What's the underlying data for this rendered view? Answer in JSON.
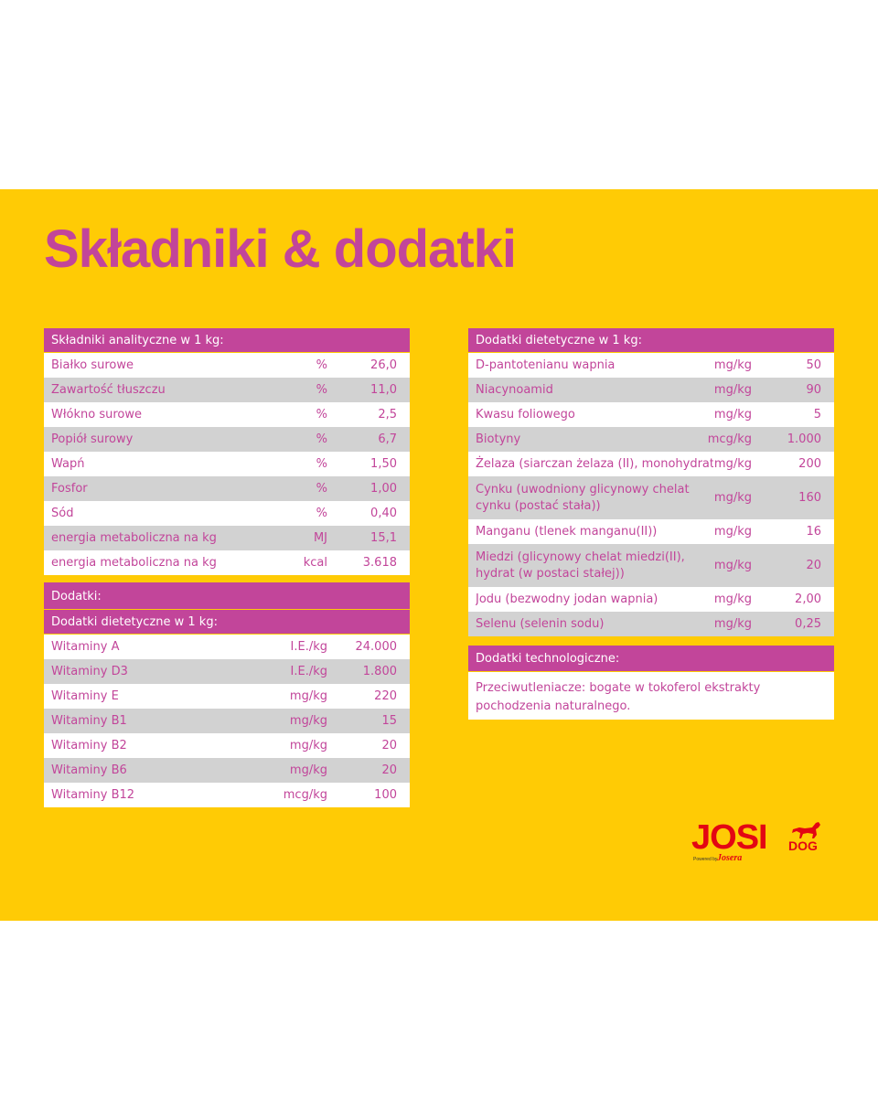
{
  "title": "Składniki & dodatki",
  "colors": {
    "background": "#ffcb05",
    "accent": "#c2459a",
    "row_alt": "#d2d2d2",
    "logo": "#e30613"
  },
  "analytical": {
    "header": "Składniki analityczne w 1 kg:",
    "rows": [
      {
        "name": "Białko surowe",
        "unit": "%",
        "value": "26,0"
      },
      {
        "name": "Zawartość tłuszczu",
        "unit": "%",
        "value": "11,0"
      },
      {
        "name": "Włókno surowe",
        "unit": "%",
        "value": "2,5"
      },
      {
        "name": "Popiół surowy",
        "unit": "%",
        "value": "6,7"
      },
      {
        "name": "Wapń",
        "unit": "%",
        "value": "1,50"
      },
      {
        "name": "Fosfor",
        "unit": "%",
        "value": "1,00"
      },
      {
        "name": "Sód",
        "unit": "%",
        "value": "0,40"
      },
      {
        "name": "energia metaboliczna na kg",
        "unit": "MJ",
        "value": "15,1"
      },
      {
        "name": "energia metaboliczna na kg",
        "unit": "kcal",
        "value": "3.618"
      }
    ]
  },
  "additives": {
    "header": "Dodatki:",
    "subheader": "Dodatki dietetyczne w 1 kg:",
    "rows": [
      {
        "name": "Witaminy A",
        "unit": "I.E./kg",
        "value": "24.000"
      },
      {
        "name": "Witaminy D3",
        "unit": "I.E./kg",
        "value": "1.800"
      },
      {
        "name": "Witaminy E",
        "unit": "mg/kg",
        "value": "220"
      },
      {
        "name": "Witaminy B1",
        "unit": "mg/kg",
        "value": "15"
      },
      {
        "name": "Witaminy B2",
        "unit": "mg/kg",
        "value": "20"
      },
      {
        "name": "Witaminy B6",
        "unit": "mg/kg",
        "value": "20"
      },
      {
        "name": "Witaminy B12",
        "unit": "mcg/kg",
        "value": "100"
      }
    ]
  },
  "dietary": {
    "header": "Dodatki dietetyczne w 1 kg:",
    "rows": [
      {
        "name": "D-pantotenianu wapnia",
        "unit": "mg/kg",
        "value": "50"
      },
      {
        "name": "Niacynoamid",
        "unit": "mg/kg",
        "value": "90"
      },
      {
        "name": "Kwasu foliowego",
        "unit": "mg/kg",
        "value": "5"
      },
      {
        "name": "Biotyny",
        "unit": "mcg/kg",
        "value": "1.000"
      },
      {
        "name": "Żelaza (siarczan żelaza (II), monohydrat)",
        "unit": "mg/kg",
        "value": "200"
      },
      {
        "name": "Cynku (uwodniony glicynowy chelat cynku (postać stała))",
        "unit": "mg/kg",
        "value": "160"
      },
      {
        "name": "Manganu (tlenek manganu(II))",
        "unit": "mg/kg",
        "value": "16"
      },
      {
        "name": "Miedzi (glicynowy chelat miedzi(II), hydrat (w postaci stałej))",
        "unit": "mg/kg",
        "value": "20"
      },
      {
        "name": "Jodu (bezwodny jodan wapnia)",
        "unit": "mg/kg",
        "value": "2,00"
      },
      {
        "name": "Selenu (selenin sodu)",
        "unit": "mg/kg",
        "value": "0,25"
      }
    ]
  },
  "technological": {
    "header": "Dodatki technologiczne:",
    "text": "Przeciwutleniacze: bogate w tokoferol ekstrakty pochodzenia naturalnego."
  },
  "logo": {
    "brand": "JOSI",
    "suffix": "DOG",
    "powered": "Powered by",
    "maker": "Josera"
  }
}
